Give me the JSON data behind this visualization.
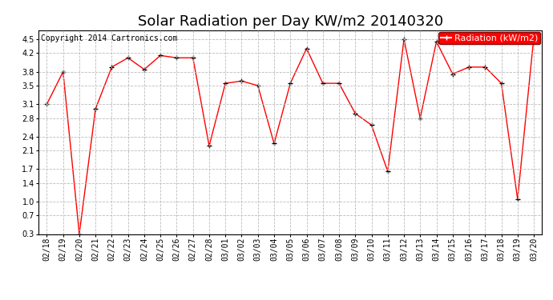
{
  "title": "Solar Radiation per Day KW/m2 20140320",
  "copyright": "Copyright 2014 Cartronics.com",
  "legend_label": "Radiation (kW/m2)",
  "dates": [
    "02/18",
    "02/19",
    "02/20",
    "02/21",
    "02/22",
    "02/23",
    "02/24",
    "02/25",
    "02/26",
    "02/27",
    "02/28",
    "03/01",
    "03/02",
    "03/03",
    "03/04",
    "03/05",
    "03/06",
    "03/07",
    "03/08",
    "03/09",
    "03/10",
    "03/11",
    "03/12",
    "03/13",
    "03/14",
    "03/15",
    "03/16",
    "03/17",
    "03/18",
    "03/19",
    "03/20"
  ],
  "values": [
    3.1,
    3.8,
    0.3,
    3.0,
    3.9,
    4.1,
    3.85,
    4.15,
    4.1,
    4.1,
    2.2,
    3.55,
    3.6,
    3.5,
    2.25,
    3.55,
    4.3,
    3.55,
    3.55,
    2.9,
    2.65,
    1.65,
    4.5,
    2.8,
    4.45,
    3.75,
    3.9,
    3.9,
    3.55,
    1.05,
    4.55
  ],
  "line_color": "red",
  "marker_color": "black",
  "bg_color": "white",
  "grid_color": "#bbbbbb",
  "ylim": [
    0.3,
    4.7
  ],
  "yticks": [
    0.3,
    0.7,
    1.0,
    1.4,
    1.7,
    2.1,
    2.4,
    2.8,
    3.1,
    3.5,
    3.8,
    4.2,
    4.5
  ],
  "title_fontsize": 13,
  "tick_fontsize": 7,
  "copyright_fontsize": 7,
  "legend_fontsize": 8
}
